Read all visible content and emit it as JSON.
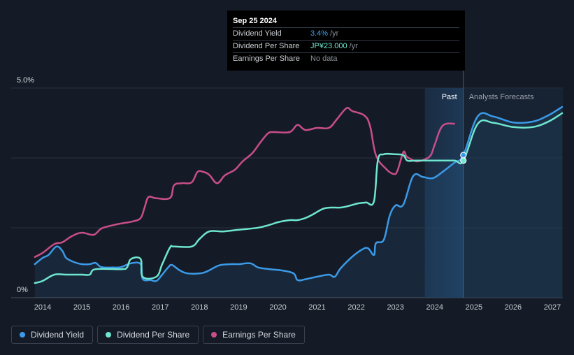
{
  "tooltip": {
    "date": "Sep 25 2024",
    "rows": [
      {
        "label": "Dividend Yield",
        "value": "3.4%",
        "suffix": "/yr",
        "color": "#3b9ae8"
      },
      {
        "label": "Dividend Per Share",
        "value": "JP¥23.000",
        "suffix": "/yr",
        "color": "#6ee6d0"
      },
      {
        "label": "Earnings Per Share",
        "value": "No data",
        "suffix": "",
        "color": "#8a9099"
      }
    ]
  },
  "legend": [
    {
      "label": "Dividend Yield",
      "color": "#3b9ae8"
    },
    {
      "label": "Dividend Per Share",
      "color": "#6ee6d0"
    },
    {
      "label": "Earnings Per Share",
      "color": "#c84e89"
    }
  ],
  "chart_data": {
    "type": "line",
    "y_tick_labels": [
      "0%",
      "5.0%"
    ],
    "ylim": [
      0,
      5.0
    ],
    "xlim": [
      2013.75,
      2027.25
    ],
    "x_ticks": [
      2014,
      2015,
      2016,
      2017,
      2018,
      2019,
      2020,
      2021,
      2022,
      2023,
      2024,
      2025,
      2026,
      2027
    ],
    "region_labels": {
      "past": "Past",
      "forecast": "Analysts Forecasts"
    },
    "past_region_start": 2023.75,
    "today": 2024.73,
    "colors": {
      "yield": "#3b9ae8",
      "dps": "#6ee6d0",
      "eps": "#c84e89"
    },
    "series": [
      {
        "name": "Dividend Yield",
        "key": "yield",
        "points": [
          [
            2013.8,
            0.8
          ],
          [
            2014.0,
            0.95
          ],
          [
            2014.15,
            1.02
          ],
          [
            2014.35,
            1.22
          ],
          [
            2014.5,
            1.12
          ],
          [
            2014.6,
            0.95
          ],
          [
            2014.8,
            0.85
          ],
          [
            2015.0,
            0.8
          ],
          [
            2015.2,
            0.8
          ],
          [
            2015.35,
            0.83
          ],
          [
            2015.5,
            0.73
          ],
          [
            2015.8,
            0.72
          ],
          [
            2016.0,
            0.73
          ],
          [
            2016.25,
            0.82
          ],
          [
            2016.5,
            0.8
          ],
          [
            2016.55,
            0.45
          ],
          [
            2016.75,
            0.42
          ],
          [
            2016.9,
            0.4
          ],
          [
            2017.05,
            0.55
          ],
          [
            2017.2,
            0.72
          ],
          [
            2017.3,
            0.78
          ],
          [
            2017.5,
            0.65
          ],
          [
            2017.7,
            0.58
          ],
          [
            2018.0,
            0.58
          ],
          [
            2018.2,
            0.63
          ],
          [
            2018.5,
            0.77
          ],
          [
            2018.8,
            0.8
          ],
          [
            2019.0,
            0.8
          ],
          [
            2019.3,
            0.82
          ],
          [
            2019.5,
            0.72
          ],
          [
            2019.8,
            0.68
          ],
          [
            2020.1,
            0.65
          ],
          [
            2020.4,
            0.58
          ],
          [
            2020.5,
            0.42
          ],
          [
            2020.7,
            0.44
          ],
          [
            2021.0,
            0.5
          ],
          [
            2021.3,
            0.55
          ],
          [
            2021.45,
            0.5
          ],
          [
            2021.6,
            0.7
          ],
          [
            2021.9,
            0.98
          ],
          [
            2022.15,
            1.15
          ],
          [
            2022.3,
            1.18
          ],
          [
            2022.45,
            1.02
          ],
          [
            2022.5,
            1.3
          ],
          [
            2022.7,
            1.38
          ],
          [
            2022.85,
            1.95
          ],
          [
            2023.0,
            2.2
          ],
          [
            2023.2,
            2.22
          ],
          [
            2023.45,
            2.9
          ],
          [
            2023.7,
            2.88
          ],
          [
            2023.95,
            2.85
          ],
          [
            2024.2,
            3.0
          ],
          [
            2024.5,
            3.22
          ],
          [
            2024.73,
            3.4
          ],
          [
            2025.1,
            4.33
          ],
          [
            2025.5,
            4.32
          ],
          [
            2026.0,
            4.18
          ],
          [
            2026.5,
            4.2
          ],
          [
            2026.9,
            4.35
          ],
          [
            2027.25,
            4.55
          ]
        ]
      },
      {
        "name": "Dividend Per Share",
        "key": "dps",
        "points": [
          [
            2013.8,
            0.35
          ],
          [
            2014.0,
            0.4
          ],
          [
            2014.3,
            0.55
          ],
          [
            2014.6,
            0.55
          ],
          [
            2015.0,
            0.55
          ],
          [
            2015.2,
            0.55
          ],
          [
            2015.35,
            0.68
          ],
          [
            2016.0,
            0.68
          ],
          [
            2016.15,
            0.72
          ],
          [
            2016.25,
            0.92
          ],
          [
            2016.5,
            0.92
          ],
          [
            2016.55,
            0.5
          ],
          [
            2016.9,
            0.5
          ],
          [
            2017.05,
            0.8
          ],
          [
            2017.25,
            1.2
          ],
          [
            2017.35,
            1.22
          ],
          [
            2017.8,
            1.22
          ],
          [
            2018.0,
            1.4
          ],
          [
            2018.25,
            1.58
          ],
          [
            2018.6,
            1.58
          ],
          [
            2019.0,
            1.62
          ],
          [
            2019.5,
            1.67
          ],
          [
            2019.8,
            1.74
          ],
          [
            2020.0,
            1.8
          ],
          [
            2020.3,
            1.85
          ],
          [
            2020.5,
            1.85
          ],
          [
            2020.7,
            1.9
          ],
          [
            2020.9,
            1.99
          ],
          [
            2021.15,
            2.12
          ],
          [
            2021.35,
            2.15
          ],
          [
            2021.6,
            2.15
          ],
          [
            2021.85,
            2.2
          ],
          [
            2022.05,
            2.25
          ],
          [
            2022.25,
            2.27
          ],
          [
            2022.45,
            2.3
          ],
          [
            2022.55,
            3.28
          ],
          [
            2022.7,
            3.42
          ],
          [
            2023.0,
            3.42
          ],
          [
            2023.2,
            3.4
          ],
          [
            2023.3,
            3.27
          ],
          [
            2023.5,
            3.27
          ],
          [
            2023.75,
            3.27
          ],
          [
            2024.0,
            3.27
          ],
          [
            2024.5,
            3.27
          ],
          [
            2024.73,
            3.27
          ],
          [
            2025.1,
            4.15
          ],
          [
            2025.5,
            4.17
          ],
          [
            2026.0,
            4.07
          ],
          [
            2026.5,
            4.07
          ],
          [
            2026.9,
            4.2
          ],
          [
            2027.25,
            4.4
          ]
        ]
      },
      {
        "name": "Earnings Per Share",
        "key": "eps",
        "points": [
          [
            2013.8,
            0.97
          ],
          [
            2014.0,
            1.07
          ],
          [
            2014.3,
            1.28
          ],
          [
            2014.5,
            1.32
          ],
          [
            2014.75,
            1.47
          ],
          [
            2015.0,
            1.55
          ],
          [
            2015.3,
            1.5
          ],
          [
            2015.5,
            1.65
          ],
          [
            2015.8,
            1.73
          ],
          [
            2016.0,
            1.77
          ],
          [
            2016.3,
            1.82
          ],
          [
            2016.5,
            1.9
          ],
          [
            2016.6,
            2.15
          ],
          [
            2016.7,
            2.4
          ],
          [
            2016.9,
            2.37
          ],
          [
            2017.25,
            2.38
          ],
          [
            2017.35,
            2.68
          ],
          [
            2017.55,
            2.73
          ],
          [
            2017.8,
            2.75
          ],
          [
            2017.95,
            3.0
          ],
          [
            2018.1,
            3.0
          ],
          [
            2018.25,
            2.93
          ],
          [
            2018.45,
            2.73
          ],
          [
            2018.65,
            2.92
          ],
          [
            2018.9,
            3.05
          ],
          [
            2019.1,
            3.25
          ],
          [
            2019.35,
            3.45
          ],
          [
            2019.55,
            3.7
          ],
          [
            2019.75,
            3.92
          ],
          [
            2019.9,
            3.95
          ],
          [
            2020.3,
            3.95
          ],
          [
            2020.5,
            4.12
          ],
          [
            2020.7,
            4.0
          ],
          [
            2021.0,
            4.05
          ],
          [
            2021.3,
            4.05
          ],
          [
            2021.5,
            4.25
          ],
          [
            2021.75,
            4.52
          ],
          [
            2021.9,
            4.45
          ],
          [
            2022.2,
            4.35
          ],
          [
            2022.35,
            4.1
          ],
          [
            2022.5,
            3.4
          ],
          [
            2022.75,
            3.08
          ],
          [
            2022.95,
            2.95
          ],
          [
            2023.05,
            3.03
          ],
          [
            2023.2,
            3.47
          ],
          [
            2023.28,
            3.37
          ],
          [
            2023.4,
            3.3
          ],
          [
            2023.55,
            3.25
          ],
          [
            2023.75,
            3.3
          ],
          [
            2023.9,
            3.4
          ],
          [
            2024.0,
            3.65
          ],
          [
            2024.2,
            4.1
          ],
          [
            2024.5,
            4.15
          ]
        ]
      }
    ]
  }
}
